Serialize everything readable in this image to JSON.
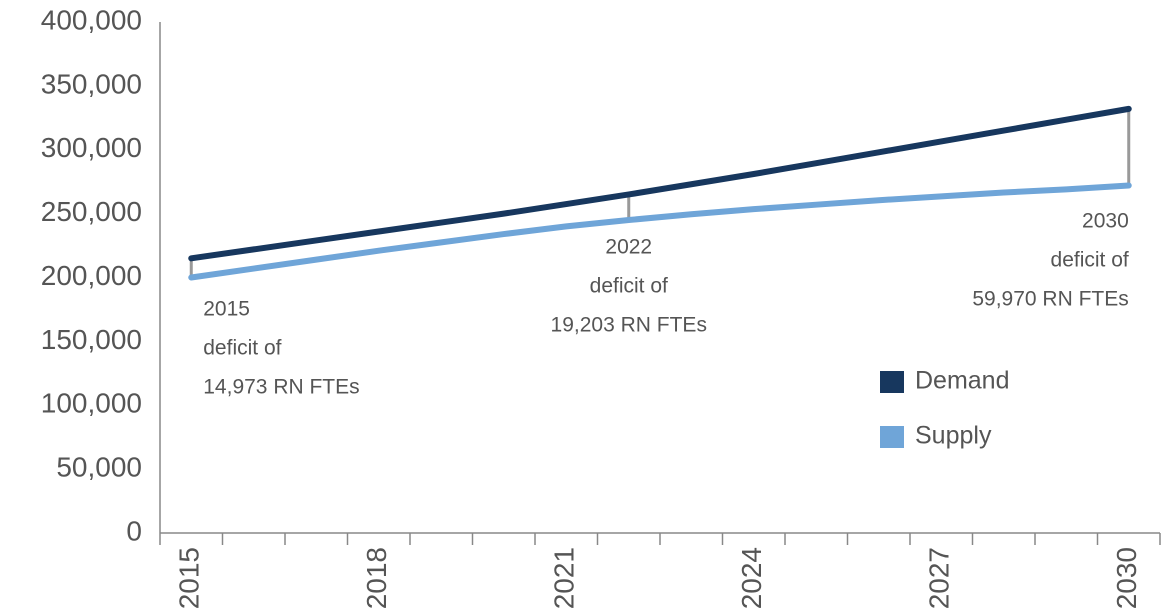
{
  "chart_data": {
    "type": "line",
    "categories": [
      "2015",
      null,
      null,
      "2018",
      null,
      null,
      "2021",
      null,
      null,
      "2024",
      null,
      null,
      "2027",
      null,
      null,
      "2030"
    ],
    "series": [
      {
        "name": "Demand",
        "color": "#17375e",
        "values": [
          215000,
          222000,
          229000,
          236000,
          243000,
          250000,
          257500,
          265000,
          273000,
          281000,
          289500,
          298000,
          306500,
          315000,
          323500,
          332000
        ]
      },
      {
        "name": "Supply",
        "color": "#6fa5d8",
        "values": [
          200000,
          207000,
          214000,
          221000,
          227500,
          234000,
          240000,
          245000,
          249500,
          253500,
          257000,
          260500,
          263500,
          266500,
          269000,
          272000
        ]
      }
    ],
    "ylim": [
      0,
      400000
    ],
    "yticks": [
      0,
      {
        "value": 50000,
        "label": "50,000"
      },
      {
        "value": 100000,
        "label": "100,000"
      },
      {
        "value": 150000,
        "label": "150,000"
      },
      {
        "value": 200000,
        "label": "200,000"
      },
      {
        "value": 250000,
        "label": "250,000"
      },
      {
        "value": 300000,
        "label": "300,000"
      },
      {
        "value": 350000,
        "label": "350,000"
      },
      {
        "value": 400000,
        "label": "400,000"
      }
    ],
    "grid": false,
    "legend": "right",
    "annotations": [
      {
        "category": "2015",
        "lines": [
          "2015",
          "deficit of",
          "14,973 RN FTEs"
        ]
      },
      {
        "category": "2022",
        "lines": [
          "2022",
          "deficit of",
          "19,203 RN FTEs"
        ]
      },
      {
        "category": "2030",
        "lines": [
          "2030",
          "deficit of",
          "59,970 RN FTEs"
        ]
      }
    ]
  }
}
